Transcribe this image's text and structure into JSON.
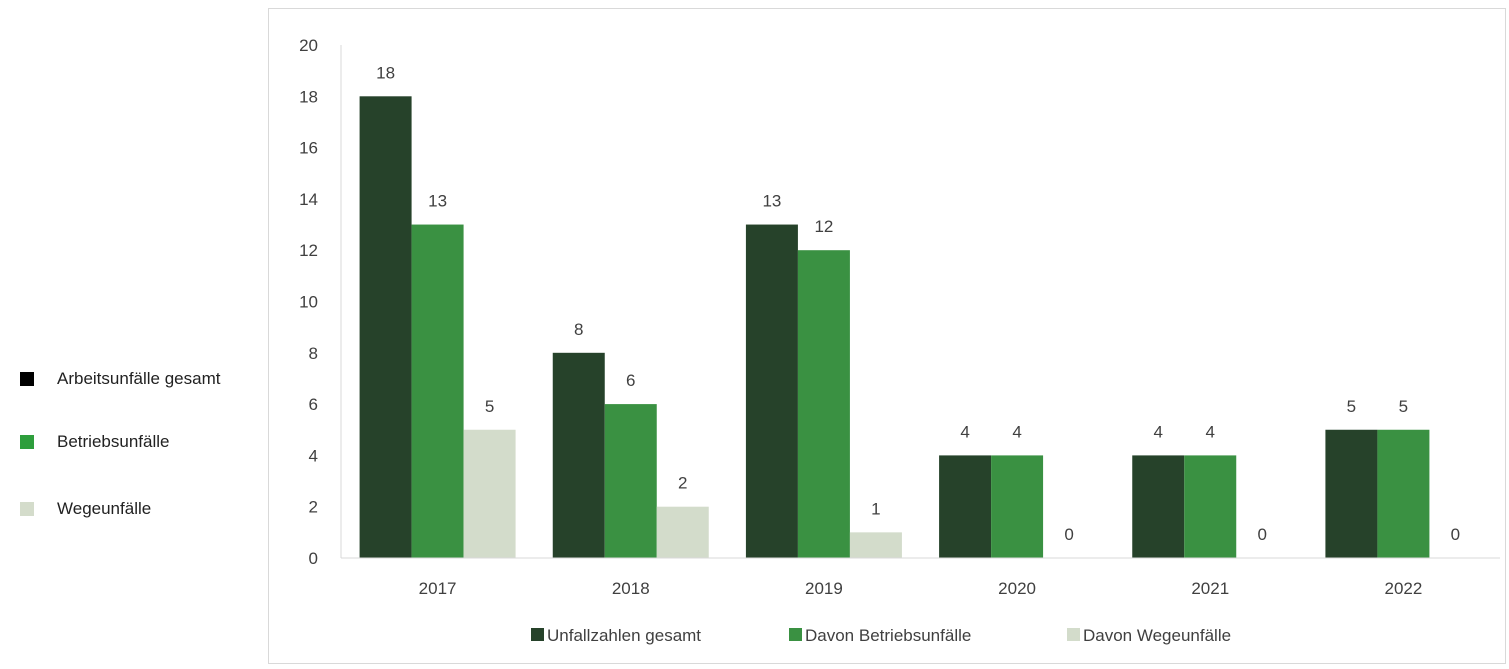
{
  "side_legend": {
    "items": [
      {
        "label": "Arbeitsunfälle gesamt",
        "color": "#000000"
      },
      {
        "label": "Betriebsunfälle",
        "color": "#2e9e3c"
      },
      {
        "label": "Wegeunfälle",
        "color": "#d4dccb"
      }
    ]
  },
  "chart_data": {
    "type": "bar",
    "categories": [
      "2017",
      "2018",
      "2019",
      "2020",
      "2021",
      "2022"
    ],
    "series": [
      {
        "name": "Unfallzahlen gesamt",
        "color": "#26422a",
        "values": [
          18,
          8,
          13,
          4,
          4,
          5
        ]
      },
      {
        "name": "Davon Betriebsunfälle",
        "color": "#3a9142",
        "values": [
          13,
          6,
          12,
          4,
          4,
          5
        ]
      },
      {
        "name": "Davon Wegeunfälle",
        "color": "#d3dccb",
        "values": [
          5,
          2,
          1,
          0,
          0,
          0
        ]
      }
    ],
    "yticks": [
      "0",
      "2",
      "4",
      "6",
      "8",
      "10",
      "12",
      "14",
      "16",
      "18",
      "20"
    ],
    "ylim": [
      0,
      20
    ],
    "grid": false,
    "data_labels": true,
    "legend_position": "bottom"
  }
}
